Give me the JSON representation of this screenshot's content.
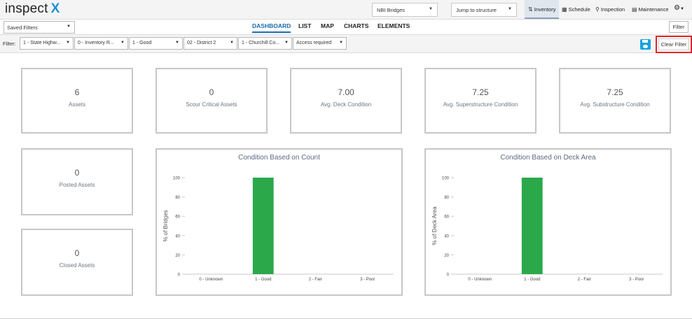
{
  "app": {
    "logo_text": "inspect",
    "logo_x": "X"
  },
  "topbar": {
    "asset_select": "NBI Bridges",
    "jump_select": "Jump to structure",
    "nav": [
      {
        "icon": "sort-icon",
        "glyph": "⇅",
        "label": "Inventory",
        "active": true
      },
      {
        "icon": "calendar-icon",
        "glyph": "▦",
        "label": "Schedule",
        "active": false
      },
      {
        "icon": "search-icon",
        "glyph": "⚲",
        "label": "Inspection",
        "active": false
      },
      {
        "icon": "toolbox-icon",
        "glyph": "▤",
        "label": "Maintenance",
        "active": false
      }
    ],
    "settings_glyph": "⚙"
  },
  "toolbar": {
    "saved_filters": "Saved Filters",
    "tabs": [
      "DASHBOARD",
      "LIST",
      "MAP",
      "CHARTS",
      "ELEMENTS"
    ],
    "active_tab": "DASHBOARD",
    "filter_button": "Filter"
  },
  "filters": {
    "label": "Filter:",
    "items": [
      "1 - State Highw...",
      "0 - Inventory R...",
      "1 - Good",
      "02 - District 2",
      "1 - Churchill Co...",
      "Access required"
    ],
    "clear_button": "Clear Filter"
  },
  "stats": [
    {
      "value": "6",
      "label": "Assets"
    },
    {
      "value": "0",
      "label": "Scour Critical Assets"
    },
    {
      "value": "7.00",
      "label": "Avg. Deck Condition"
    },
    {
      "value": "7.25",
      "label": "Avg. Superstructure Condition"
    },
    {
      "value": "7.25",
      "label": "Avg. Substructure Condition"
    },
    {
      "value": "0",
      "label": "Posted Assets"
    },
    {
      "value": "0",
      "label": "Closed Assets"
    }
  ],
  "colors": {
    "accent": "#1a6db0",
    "bar": "#2aa84a",
    "highlight": "#e3222a"
  },
  "chart_data": [
    {
      "type": "bar",
      "title": "Condition Based on Count",
      "ylabel": "% of Bridges",
      "xlabel": "",
      "categories": [
        "0 - Unknown",
        "1 - Good",
        "2 - Fair",
        "3 - Poor"
      ],
      "values": [
        0,
        100,
        0,
        0
      ],
      "ylim": [
        0,
        100
      ],
      "yticks": [
        0,
        20,
        40,
        60,
        80,
        100
      ],
      "grid": false
    },
    {
      "type": "bar",
      "title": "Condition Based on Deck Area",
      "ylabel": "% of Deck Area",
      "xlabel": "",
      "categories": [
        "0 - Unknown",
        "1 - Good",
        "2 - Fair",
        "3 - Poor"
      ],
      "values": [
        0,
        100,
        0,
        0
      ],
      "ylim": [
        0,
        100
      ],
      "yticks": [
        0,
        20,
        40,
        60,
        80,
        100
      ],
      "grid": false
    }
  ]
}
